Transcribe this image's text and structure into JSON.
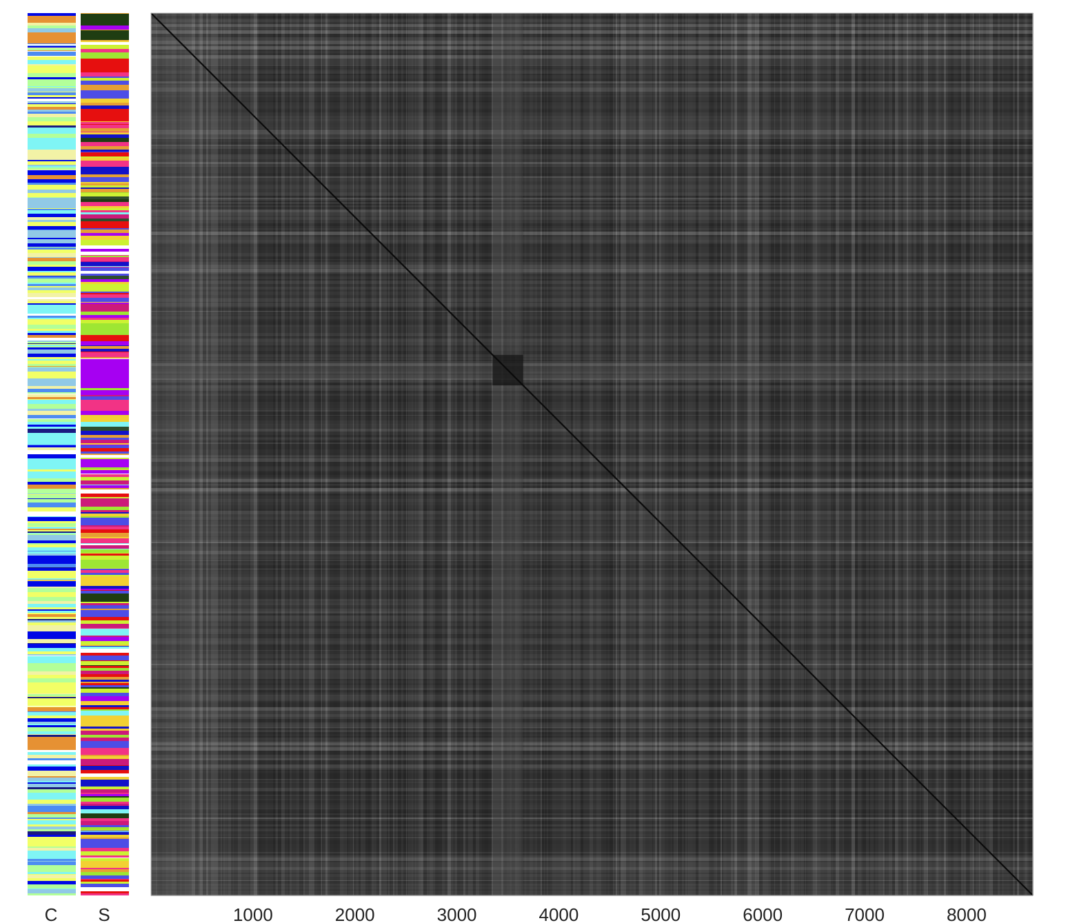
{
  "chart_data": {
    "type": "heatmap",
    "title": "",
    "xlabel": "",
    "ylabel": "",
    "n": 8650,
    "xlim": [
      0,
      8650
    ],
    "x_ticks": [
      "1000",
      "2000",
      "3000",
      "4000",
      "5000",
      "6000",
      "7000",
      "8000"
    ],
    "x_tick_values": [
      1000,
      2000,
      3000,
      4000,
      5000,
      6000,
      7000,
      8000
    ],
    "colormap": "grayscale (dark = similar)",
    "diagonal": "dark",
    "block_structure": [
      {
        "range": [
          0,
          1200
        ],
        "note": "lighter band at start"
      },
      {
        "range": [
          3350,
          3650
        ],
        "note": "dark diagonal block with light cross band"
      }
    ],
    "annotation_bars": [
      {
        "label": "C",
        "palette": [
          "#7ff5f5",
          "#b3ff99",
          "#f2ff66",
          "#e69133",
          "#4d8cf2",
          "#0008e6",
          "#f2f2a6",
          "#91c9e6",
          "#ffffff",
          "#1a1a80"
        ]
      },
      {
        "label": "S",
        "palette": [
          "#1f3d12",
          "#e60f0f",
          "#4d4de6",
          "#a600f2",
          "#1212c8",
          "#f23385",
          "#ccf233",
          "#f2d133",
          "#9ee633",
          "#e6a033",
          "#7ff5f5",
          "#cc1a7a",
          "#2e4d2e",
          "#ffffff"
        ]
      }
    ]
  }
}
